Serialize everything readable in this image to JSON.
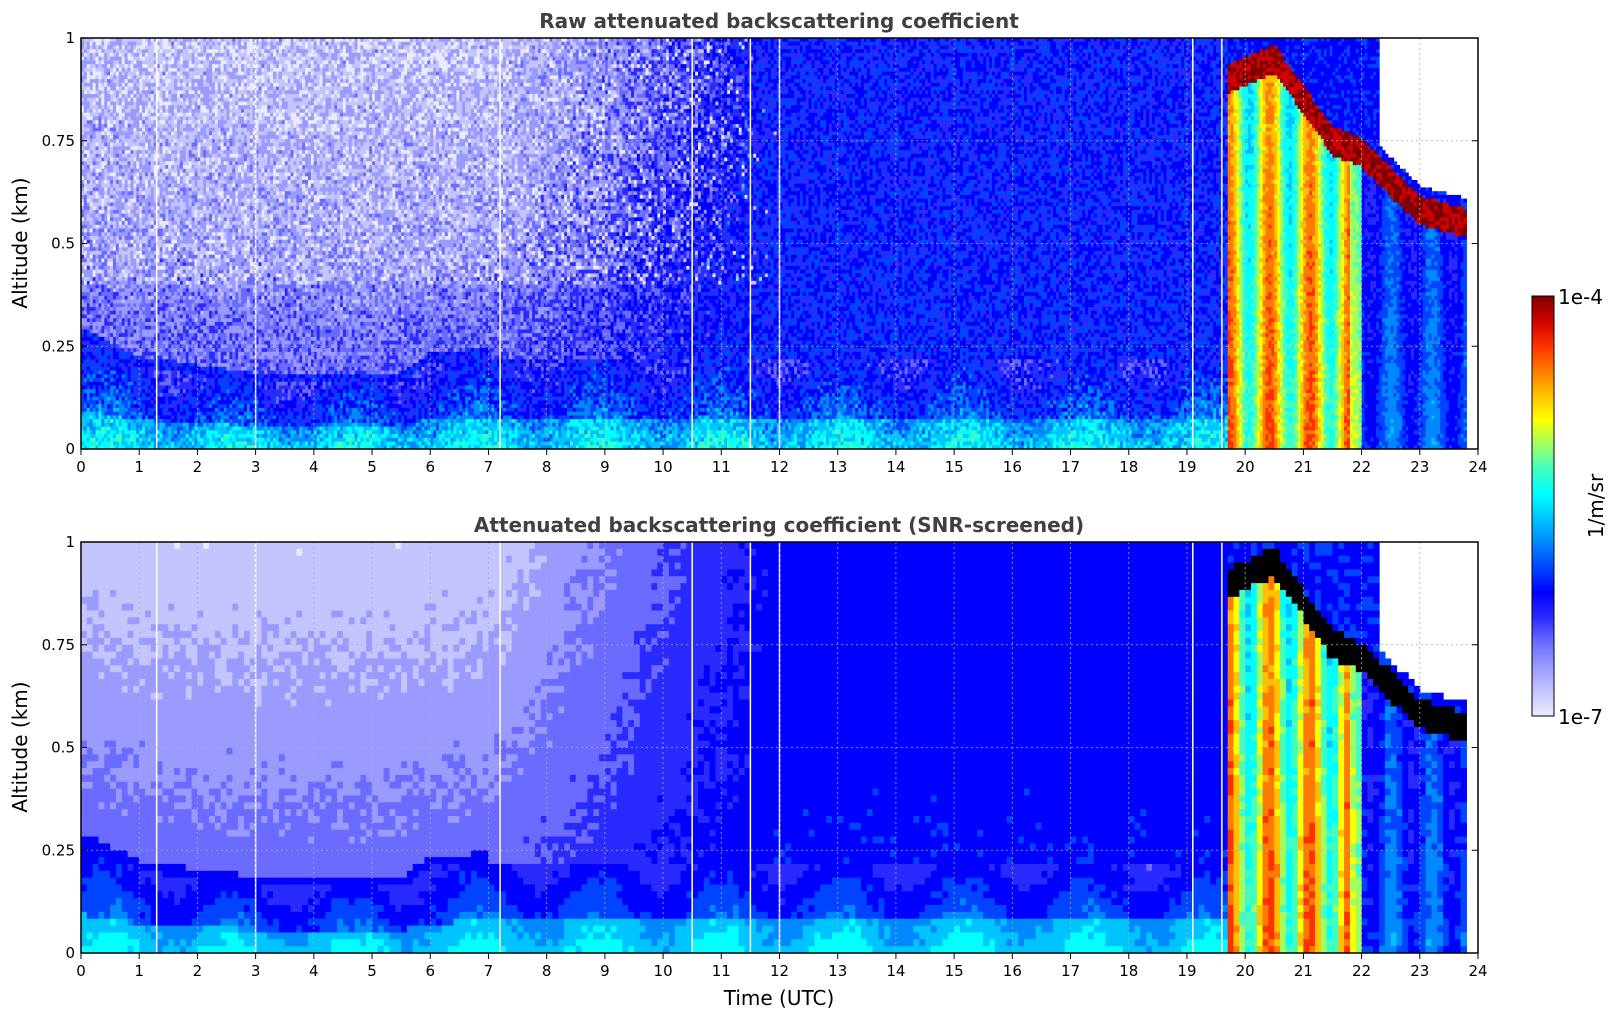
{
  "chart_data": [
    {
      "type": "heatmap",
      "title": "Raw attenuated backscattering coefficient",
      "xlabel": "",
      "ylabel": "Altitude (km)",
      "xlim": [
        0,
        24
      ],
      "ylim": [
        0,
        1
      ],
      "x_ticks": [
        "0",
        "1",
        "2",
        "3",
        "4",
        "5",
        "6",
        "7",
        "8",
        "9",
        "10",
        "11",
        "12",
        "13",
        "14",
        "15",
        "16",
        "17",
        "18",
        "19",
        "20",
        "21",
        "22",
        "23",
        "24"
      ],
      "y_ticks": [
        "0",
        "0.25",
        "0.5",
        "0.75",
        "1"
      ],
      "grid": true,
      "data_gaps_utc": [
        1.3,
        3.0,
        7.2,
        10.5,
        11.5,
        12.0,
        19.1,
        19.6
      ],
      "features": [
        {
          "what": "low layer top (km)",
          "x": [
            0,
            1,
            2,
            3,
            4,
            5,
            5.5,
            6,
            7
          ],
          "y": [
            0.27,
            0.2,
            0.18,
            0.16,
            0.16,
            0.16,
            0.16,
            0.21,
            0.22
          ]
        },
        {
          "what": "cloud layer (km)",
          "x": [
            19.7,
            20.5,
            21,
            21.5,
            22,
            22.5,
            23,
            23.8
          ],
          "y": [
            0.9,
            0.95,
            0.85,
            0.75,
            0.72,
            0.65,
            0.58,
            0.55
          ]
        }
      ]
    },
    {
      "type": "heatmap",
      "title": "Attenuated backscattering coefficient (SNR-screened)",
      "xlabel": "Time (UTC)",
      "ylabel": "Altitude (km)",
      "xlim": [
        0,
        24
      ],
      "ylim": [
        0,
        1
      ],
      "x_ticks": [
        "0",
        "1",
        "2",
        "3",
        "4",
        "5",
        "6",
        "7",
        "8",
        "9",
        "10",
        "11",
        "12",
        "13",
        "14",
        "15",
        "16",
        "17",
        "18",
        "19",
        "20",
        "21",
        "22",
        "23",
        "24"
      ],
      "y_ticks": [
        "0",
        "0.25",
        "0.5",
        "0.75",
        "1"
      ],
      "grid": true,
      "data_gaps_utc": [
        1.3,
        3.0,
        7.2,
        10.5,
        11.5,
        12.0,
        19.1,
        19.6
      ],
      "features": [
        {
          "what": "low layer top (km)",
          "x": [
            0,
            1,
            2,
            3,
            4,
            5,
            5.5,
            6,
            7
          ],
          "y": [
            0.27,
            0.2,
            0.18,
            0.16,
            0.16,
            0.16,
            0.16,
            0.21,
            0.22
          ]
        },
        {
          "what": "saturated cloud layer (km)",
          "x": [
            19.7,
            20.5,
            21,
            21.5,
            22,
            22.5,
            23,
            23.8
          ],
          "y": [
            0.9,
            0.95,
            0.85,
            0.75,
            0.72,
            0.65,
            0.58,
            0.55
          ]
        }
      ]
    }
  ],
  "colorbar": {
    "max_label": "1e-4",
    "min_label": "1e-7",
    "unit_label": "1/m/sr",
    "scale": "log",
    "range": [
      1e-07,
      0.0001
    ],
    "colormap": [
      "#ebebff",
      "#c4c4ff",
      "#9a9aff",
      "#6b6bff",
      "#2a2aff",
      "#0000ff",
      "#0044ff",
      "#0088ff",
      "#00c4ff",
      "#00ffff",
      "#40ffc0",
      "#a0ff60",
      "#ffff00",
      "#ffc000",
      "#ff7a00",
      "#ff3000",
      "#d00000",
      "#800000"
    ],
    "screened_color": "#000000"
  }
}
